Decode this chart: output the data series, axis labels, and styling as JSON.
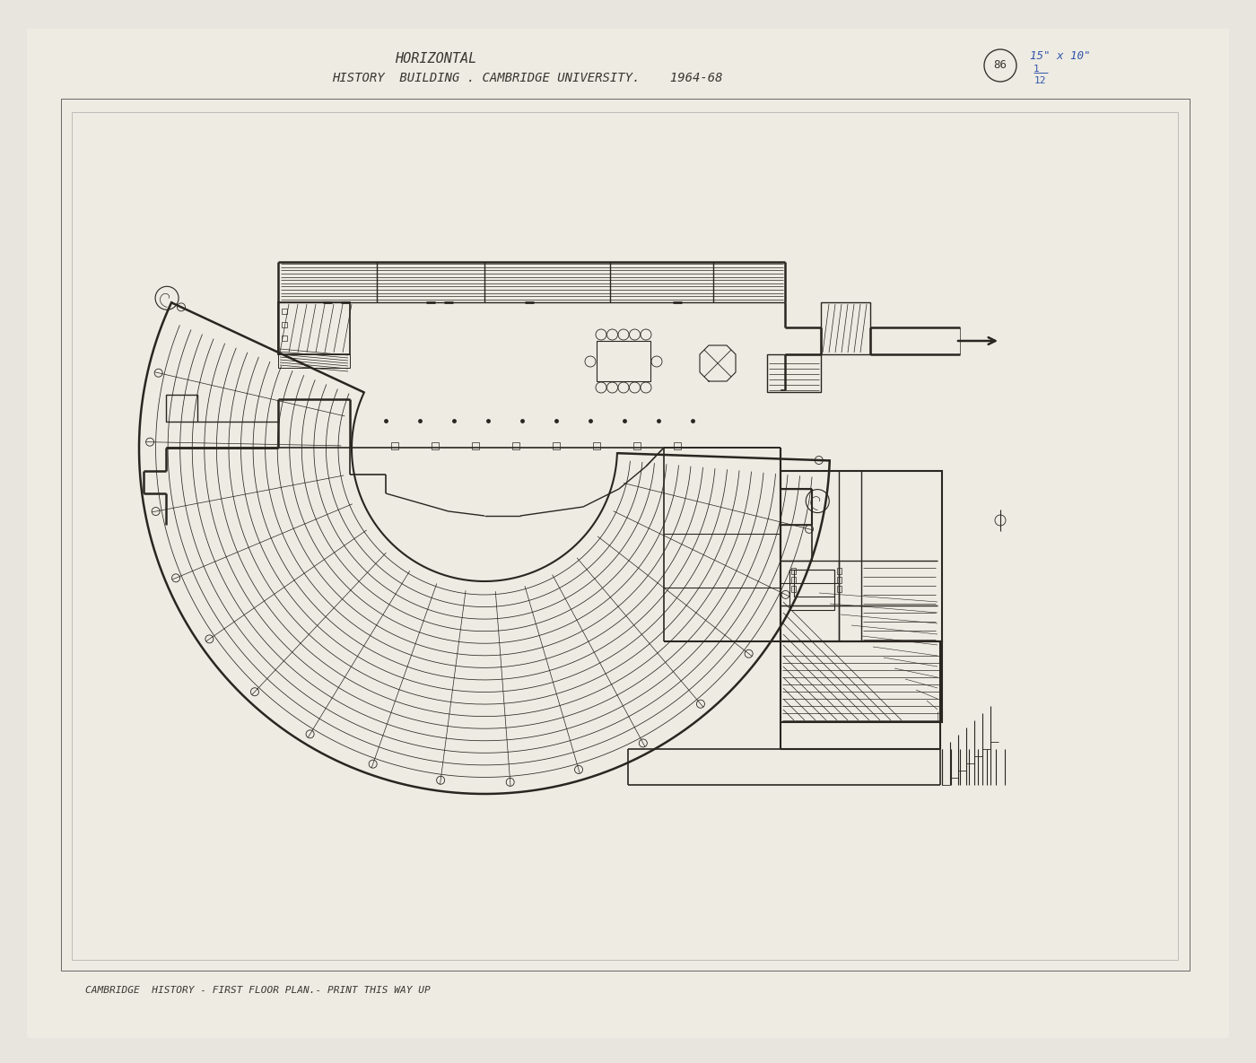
{
  "bg_color": "#e8e5de",
  "paper_color": "#eeebe3",
  "line_color": "#2a2520",
  "title_line1": "HORIZONTAL",
  "title_line2": "HISTORY  BUILDING . CAMBRIDGE UNIVERSITY.    1964-68",
  "page_num": "86",
  "bottom_label": "CAMBRIDGE  HISTORY - FIRST FLOOR PLAN.- PRINT THIS WAY UP"
}
